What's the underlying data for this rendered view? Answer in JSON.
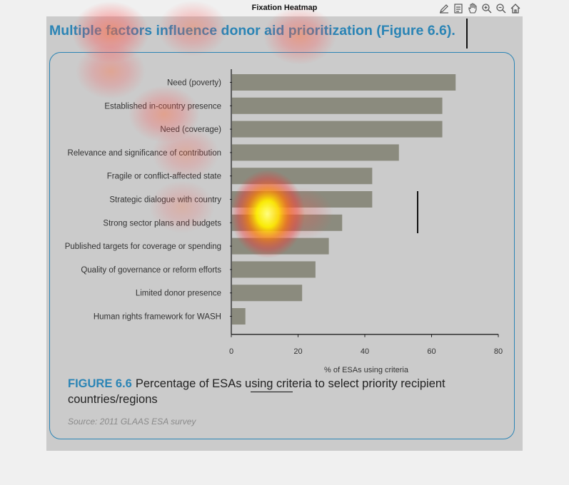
{
  "window": {
    "title": "Fixation Heatmap"
  },
  "toolbar": {
    "icons": [
      "edit-pen-icon",
      "data-cursor-icon",
      "pan-hand-icon",
      "zoom-in-icon",
      "zoom-out-icon",
      "home-icon"
    ]
  },
  "page": {
    "heading": "Multiple factors influence donor aid prioritization (Figure 6.6).",
    "caption_label": "FIGURE 6.6",
    "caption_text": "Percentage of ESAs using criteria to select priority recipient countries/regions",
    "source": "Source: 2011 GLAAS ESA survey"
  },
  "colors": {
    "accent": "#2a84b5",
    "bar": "#8b8b7e",
    "panel": "#cbcbcb",
    "background": "#f0f0f0"
  },
  "chart_data": {
    "type": "bar",
    "orientation": "horizontal",
    "categories": [
      "Need (poverty)",
      "Established in-country presence",
      "Need (coverage)",
      "Relevance and significance of contribution",
      "Fragile or conflict-affected state",
      "Strategic dialogue with country",
      "Strong sector plans and budgets",
      "Published targets for coverage or spending",
      "Quality of governance or reform efforts",
      "Limited donor presence",
      "Human rights framework for WASH"
    ],
    "values": [
      67,
      63,
      63,
      50,
      42,
      42,
      33,
      29,
      25,
      21,
      4
    ],
    "xlabel": "% of ESAs using criteria",
    "xlim": [
      0,
      80
    ],
    "xticks": [
      0,
      20,
      40,
      60,
      80
    ],
    "grid": false,
    "legend": "none"
  },
  "heatmap": {
    "type": "fixation heatmap overlay",
    "fixations": [
      {
        "x": 375,
        "y": 300,
        "intensity": 1.0
      },
      {
        "x": 155,
        "y": 45,
        "intensity": 0.7
      },
      {
        "x": 270,
        "y": 40,
        "intensity": 0.45
      },
      {
        "x": 420,
        "y": 50,
        "intensity": 0.55
      },
      {
        "x": 155,
        "y": 100,
        "intensity": 0.45
      },
      {
        "x": 230,
        "y": 160,
        "intensity": 0.5
      },
      {
        "x": 260,
        "y": 215,
        "intensity": 0.35
      },
      {
        "x": 255,
        "y": 290,
        "intensity": 0.3
      },
      {
        "x": 420,
        "y": 300,
        "intensity": 0.35
      }
    ]
  }
}
